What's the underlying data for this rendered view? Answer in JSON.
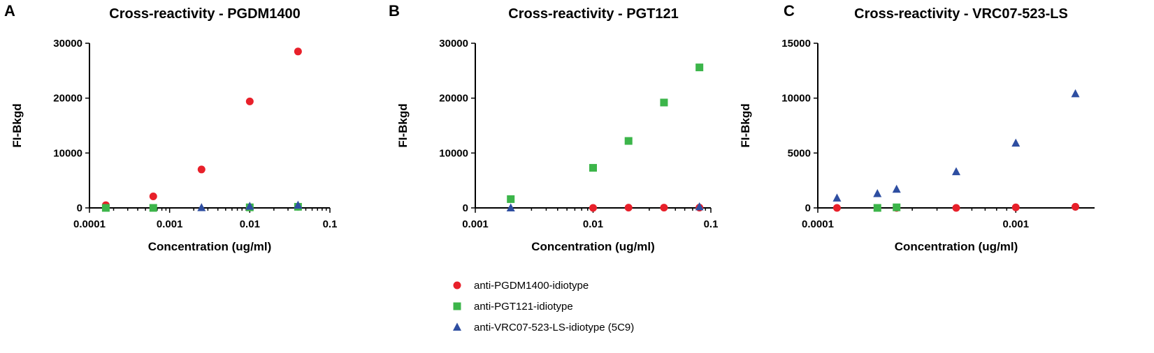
{
  "chart_data": [
    {
      "type": "scatter",
      "panel_letter": "A",
      "title": "Cross-reactivity - PGDM1400",
      "xlabel": "Concentration (ug/ml)",
      "ylabel": "FI-Bkgd",
      "xscale": "log",
      "xlim": [
        0.0001,
        0.1
      ],
      "ylim": [
        0,
        30000
      ],
      "x_ticks": [
        0.0001,
        0.001,
        0.01,
        0.1
      ],
      "x_tick_labels": [
        "0.0001",
        "0.001",
        "0.01",
        "0.1"
      ],
      "y_ticks": [
        0,
        10000,
        20000,
        30000
      ],
      "y_tick_labels": [
        "0",
        "10000",
        "20000",
        "30000"
      ],
      "series": [
        {
          "name": "anti-PGDM1400-idiotype",
          "marker": "circle",
          "color": "#e8202a",
          "x": [
            0.00016,
            0.000625,
            0.0025,
            0.01,
            0.04
          ],
          "y": [
            500,
            2100,
            7000,
            19400,
            28500
          ]
        },
        {
          "name": "anti-PGT121-idiotype",
          "marker": "square",
          "color": "#3cb54a",
          "x": [
            0.00016,
            0.000625,
            0.01,
            0.04
          ],
          "y": [
            0,
            0,
            100,
            200
          ]
        },
        {
          "name": "anti-VRC07-523-LS-idiotype (5C9)",
          "marker": "triangle",
          "color": "#2e4ea1",
          "x": [
            0.0025,
            0.01,
            0.04
          ],
          "y": [
            50,
            300,
            500
          ]
        }
      ]
    },
    {
      "type": "scatter",
      "panel_letter": "B",
      "title": "Cross-reactivity - PGT121",
      "xlabel": "Concentration (ug/ml)",
      "ylabel": "FI-Bkgd",
      "xscale": "log",
      "xlim": [
        0.001,
        0.1
      ],
      "ylim": [
        0,
        30000
      ],
      "x_ticks": [
        0.001,
        0.01,
        0.1
      ],
      "x_tick_labels": [
        "0.001",
        "0.01",
        "0.1"
      ],
      "y_ticks": [
        0,
        10000,
        20000,
        30000
      ],
      "y_tick_labels": [
        "0",
        "10000",
        "20000",
        "30000"
      ],
      "series": [
        {
          "name": "anti-PGDM1400-idiotype",
          "marker": "circle",
          "color": "#e8202a",
          "x": [
            0.01,
            0.02,
            0.04,
            0.08
          ],
          "y": [
            0,
            50,
            50,
            50
          ]
        },
        {
          "name": "anti-PGT121-idiotype",
          "marker": "square",
          "color": "#3cb54a",
          "x": [
            0.002,
            0.01,
            0.02,
            0.04,
            0.08
          ],
          "y": [
            1600,
            7300,
            12200,
            19200,
            25600
          ]
        },
        {
          "name": "anti-VRC07-523-LS-idiotype (5C9)",
          "marker": "triangle",
          "color": "#2e4ea1",
          "x": [
            0.002,
            0.08
          ],
          "y": [
            0,
            200
          ]
        }
      ]
    },
    {
      "type": "scatter",
      "panel_letter": "C",
      "title": "Cross-reactivity - VRC07-523-LS",
      "xlabel": "Concentration (ug/ml)",
      "ylabel": "FI-Bkgd",
      "xscale": "log",
      "xlim": [
        0.0001,
        0.0025
      ],
      "ylim": [
        0,
        15000
      ],
      "x_ticks": [
        0.0001,
        0.001
      ],
      "x_tick_labels": [
        "0.0001",
        "0.001"
      ],
      "y_ticks": [
        0,
        5000,
        10000,
        15000
      ],
      "y_tick_labels": [
        "0",
        "5000",
        "10000",
        "15000"
      ],
      "series": [
        {
          "name": "anti-PGDM1400-idiotype",
          "marker": "circle",
          "color": "#e8202a",
          "x": [
            0.000125,
            0.0002,
            0.00025,
            0.0005,
            0.001,
            0.002
          ],
          "y": [
            0,
            0,
            0,
            0,
            50,
            100
          ]
        },
        {
          "name": "anti-PGT121-idiotype",
          "marker": "square",
          "color": "#3cb54a",
          "x": [
            0.0002,
            0.00025
          ],
          "y": [
            0,
            50
          ]
        },
        {
          "name": "anti-VRC07-523-LS-idiotype (5C9)",
          "marker": "triangle",
          "color": "#2e4ea1",
          "x": [
            0.000125,
            0.0002,
            0.00025,
            0.0005,
            0.001,
            0.002
          ],
          "y": [
            900,
            1300,
            1700,
            3300,
            5900,
            10400
          ]
        }
      ]
    }
  ],
  "legend": {
    "entries": [
      {
        "label": "anti-PGDM1400-idiotype",
        "marker": "circle",
        "color": "#e8202a"
      },
      {
        "label": "anti-PGT121-idiotype",
        "marker": "square",
        "color": "#3cb54a"
      },
      {
        "label": "anti-VRC07-523-LS-idiotype (5C9)",
        "marker": "triangle",
        "color": "#2e4ea1"
      }
    ]
  }
}
